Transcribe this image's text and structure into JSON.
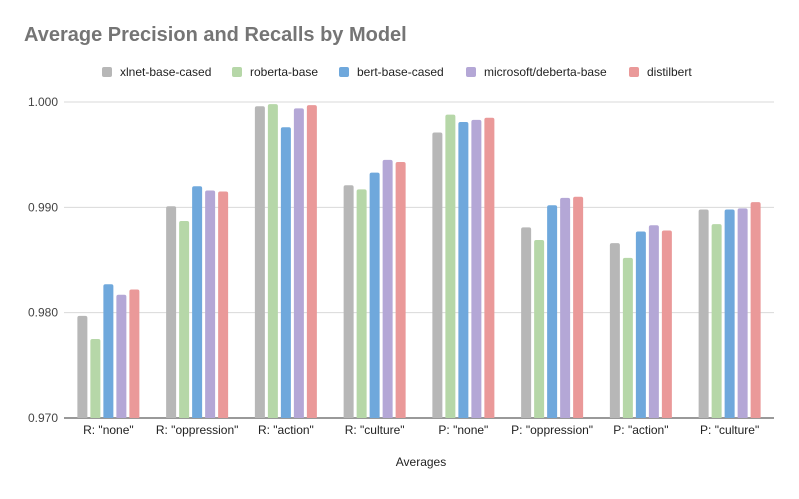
{
  "chart_data": {
    "type": "bar",
    "title": "Average Precision and Recalls by Model",
    "xlabel": "Averages",
    "ylabel": "",
    "ylim": [
      0.97,
      1.0
    ],
    "yticks": [
      "0.970",
      "0.980",
      "0.990",
      "1.000"
    ],
    "ytick_values": [
      0.97,
      0.98,
      0.99,
      1.0
    ],
    "grid": true,
    "legend_position": "top",
    "categories": [
      "R: \"none\"",
      "R: \"oppression\"",
      "R: \"action\"",
      "R: \"culture\"",
      "P: \"none\"",
      "P: \"oppression\"",
      "P: \"action\"",
      "P: \"culture\""
    ],
    "series": [
      {
        "name": "xlnet-base-cased",
        "color": "#b7b7b7",
        "values": [
          0.9797,
          0.9901,
          0.9996,
          0.9921,
          0.9971,
          0.9881,
          0.9866,
          0.9898
        ]
      },
      {
        "name": "roberta-base",
        "color": "#b6d7a8",
        "values": [
          0.9775,
          0.9887,
          0.9998,
          0.9917,
          0.9988,
          0.9869,
          0.9852,
          0.9884
        ]
      },
      {
        "name": "bert-base-cased",
        "color": "#6fa8dc",
        "values": [
          0.9827,
          0.992,
          0.9976,
          0.9933,
          0.9981,
          0.9902,
          0.9877,
          0.9898
        ]
      },
      {
        "name": "microsoft/deberta-base",
        "color": "#b4a7d6",
        "values": [
          0.9817,
          0.9916,
          0.9994,
          0.9945,
          0.9983,
          0.9909,
          0.9883,
          0.9899
        ]
      },
      {
        "name": "distilbert",
        "color": "#ea9999",
        "values": [
          0.9822,
          0.9915,
          0.9997,
          0.9943,
          0.9985,
          0.991,
          0.9878,
          0.9905
        ]
      }
    ]
  }
}
